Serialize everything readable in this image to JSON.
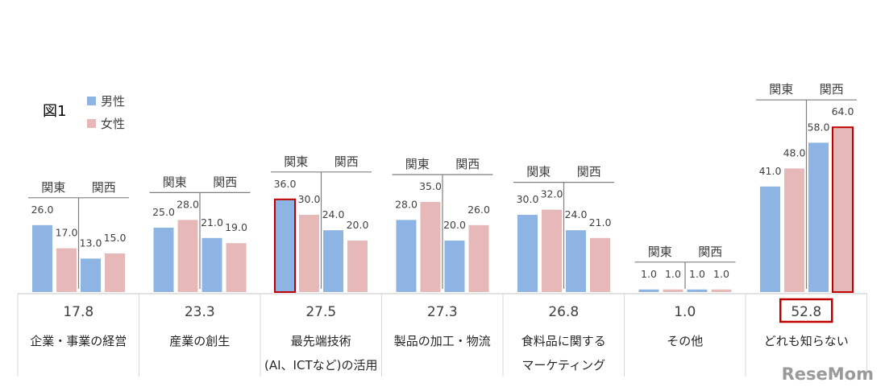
{
  "figure_label": "図1",
  "legend": [
    {
      "label": "男性",
      "color": "#8eb4e3"
    },
    {
      "label": "女性",
      "color": "#e6b9b8"
    }
  ],
  "region_labels": {
    "left": "関東",
    "right": "関西"
  },
  "highlight_color": "#c00000",
  "watermark": "ReseMom",
  "chart_data": {
    "type": "bar",
    "series_names": [
      "関東 男性",
      "関東 女性",
      "関西 男性",
      "関西 女性"
    ],
    "categories": [
      {
        "label": "企業・事業の経営",
        "total": "17.8",
        "values": [
          26.0,
          17.0,
          13.0,
          15.0
        ]
      },
      {
        "label": "産業の創生",
        "total": "23.3",
        "values": [
          25.0,
          28.0,
          21.0,
          19.0
        ]
      },
      {
        "label": "最先端技術",
        "label2": "(AI、ICTなど)の活用",
        "total": "27.5",
        "values": [
          36.0,
          30.0,
          24.0,
          20.0
        ],
        "highlight_bar": 0
      },
      {
        "label": "製品の加工・物流",
        "total": "27.3",
        "values": [
          28.0,
          35.0,
          20.0,
          26.0
        ]
      },
      {
        "label": "食料品に関する",
        "label2": "マーケティング",
        "total": "26.8",
        "values": [
          30.0,
          32.0,
          24.0,
          21.0
        ]
      },
      {
        "label": "その他",
        "total": "1.0",
        "values": [
          1.0,
          1.0,
          1.0,
          1.0
        ]
      },
      {
        "label": "どれも知らない",
        "total": "52.8",
        "values": [
          41.0,
          48.0,
          58.0,
          64.0
        ],
        "highlight_bar": 3,
        "highlight_total": true
      }
    ]
  }
}
